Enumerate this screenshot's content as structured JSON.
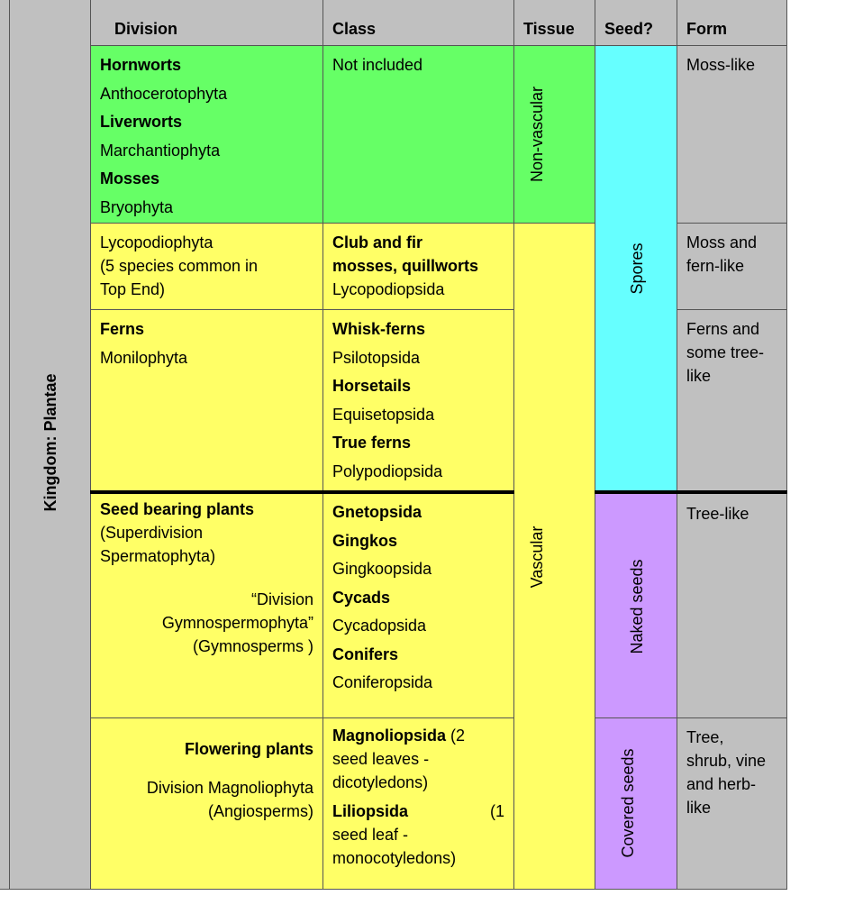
{
  "colors": {
    "header": "#c0c0c0",
    "non_vascular": "#66ff66",
    "vascular": "#ffff66",
    "spores": "#66ffff",
    "seeds": "#cc99ff"
  },
  "headers": {
    "division": "Division",
    "class": "Class",
    "tissue": "Tissue",
    "seed": "Seed?",
    "form": "Form"
  },
  "kingdom": "Kingdom: Plantae",
  "tissue": {
    "non_vascular": "Non-vascular",
    "vascular": "Vascular"
  },
  "seed": {
    "spores": "Spores",
    "naked": "Naked seeds",
    "covered": "Covered seeds"
  },
  "form": {
    "r1": [
      [
        {
          "t": "Moss-like"
        }
      ]
    ],
    "r2": [
      [
        {
          "t": "Moss and"
        }
      ],
      [
        {
          "t": "fern-like"
        }
      ]
    ],
    "r3": [
      [
        {
          "t": "Ferns and"
        }
      ],
      [
        {
          "t": "some tree-"
        }
      ],
      [
        {
          "t": "like"
        }
      ]
    ],
    "r4": [
      [
        {
          "t": "Tree-like"
        }
      ]
    ],
    "r5": [
      [
        {
          "t": "Tree,"
        }
      ],
      [
        {
          "t": "shrub, vine"
        }
      ],
      [
        {
          "t": "and herb-"
        }
      ],
      [
        {
          "t": "like"
        }
      ]
    ]
  },
  "division": {
    "r1": [
      [
        {
          "t": "Hornworts",
          "b": true
        }
      ],
      [
        {
          "t": "Anthocerotophyta"
        }
      ],
      [
        {
          "t": "Liverworts",
          "b": true
        }
      ],
      [
        {
          "t": "Marchantiophyta"
        }
      ],
      [
        {
          "t": "Mosses",
          "b": true
        }
      ],
      [
        {
          "t": "Bryophyta"
        }
      ]
    ],
    "r2": [
      [
        {
          "t": "Lycopodiophyta"
        }
      ],
      [
        {
          "t": "(5 species common in"
        }
      ],
      [
        {
          "t": "Top End)"
        }
      ]
    ],
    "r3": [
      [
        {
          "t": "Ferns",
          "b": true
        }
      ],
      [
        {
          "t": "Monilophyta"
        }
      ]
    ],
    "r4a": [
      [
        {
          "t": "Seed bearing plants",
          "b": true
        }
      ],
      [
        {
          "t": "(Superdivision"
        }
      ],
      [
        {
          "t": "Spermatophyta)"
        }
      ]
    ],
    "r4b": [
      [
        {
          "t": "“Division"
        }
      ],
      [
        {
          "t": "Gymnospermophyta”"
        }
      ],
      [
        {
          "t": "(Gymnosperms )"
        }
      ]
    ],
    "r5a": [
      [
        {
          "t": "Flowering plants",
          "b": true
        }
      ]
    ],
    "r5b": [
      [
        {
          "t": "Division Magnoliophyta"
        }
      ],
      [
        {
          "t": "(Angiosperms)"
        }
      ]
    ]
  },
  "class": {
    "r1": [
      [
        {
          "t": "Not included"
        }
      ]
    ],
    "r2": [
      [
        {
          "t": "Club and fir",
          "b": true
        }
      ],
      [
        {
          "t": "mosses, quillworts",
          "b": true
        }
      ],
      [
        {
          "t": "Lycopodiopsida"
        }
      ]
    ],
    "r3": [
      [
        {
          "t": "Whisk-ferns",
          "b": true
        }
      ],
      [
        {
          "t": "Psilotopsida"
        }
      ],
      [
        {
          "t": "Horsetails",
          "b": true
        }
      ],
      [
        {
          "t": "Equisetopsida"
        }
      ],
      [
        {
          "t": "True ferns",
          "b": true
        }
      ],
      [
        {
          "t": "Polypodiopsida"
        }
      ]
    ],
    "r4": [
      [
        {
          "t": "Gnetopsida",
          "b": true
        }
      ],
      [
        {
          "t": "Gingkos",
          "b": true
        }
      ],
      [
        {
          "t": "Gingkoopsida"
        }
      ],
      [
        {
          "t": "Cycads",
          "b": true
        }
      ],
      [
        {
          "t": "Cycadopsida"
        }
      ],
      [
        {
          "t": "Conifers",
          "b": true
        }
      ],
      [
        {
          "t": "Coniferopsida"
        }
      ]
    ],
    "r5": [
      [
        {
          "t": "Magnoliopsida",
          "b": true
        },
        {
          "t": " (2"
        }
      ],
      [
        {
          "t": "seed leaves -"
        }
      ],
      [
        {
          "t": "dicotyledons)"
        }
      ],
      [
        {
          "t": "Liliopsida",
          "b": true
        },
        {
          "t": "(1",
          "just": true
        }
      ],
      [
        {
          "t": "seed leaf -"
        }
      ],
      [
        {
          "t": "monocotyledons)"
        }
      ]
    ]
  }
}
